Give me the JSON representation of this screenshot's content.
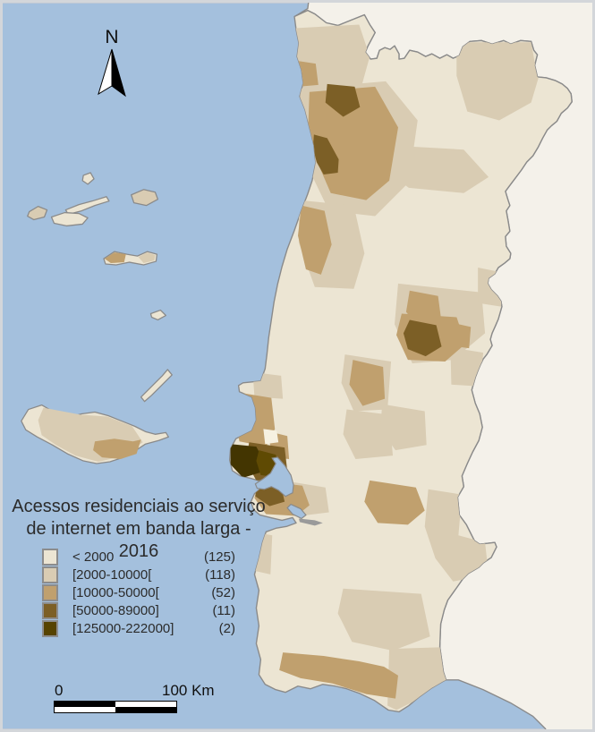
{
  "title": {
    "line1": "Acessos residenciais ao serviço",
    "line2": "de internet em banda larga - 2016"
  },
  "north": {
    "label": "N"
  },
  "scalebar": {
    "start": "0",
    "end": "100 Km"
  },
  "legend": {
    "items": [
      {
        "label": "< 2000",
        "count": "(125)",
        "color": "#ece5d3"
      },
      {
        "label": "[2000-10000[",
        "count": "(118)",
        "color": "#d9ccb3"
      },
      {
        "label": "[10000-50000[",
        "count": "(52)",
        "color": "#c0a06e"
      },
      {
        "label": "[50000-89000]",
        "count": "(11)",
        "color": "#7c5f26"
      },
      {
        "label": "[125000-222000]",
        "count": "(2)",
        "color": "#564300"
      }
    ]
  },
  "colors": {
    "ocean": "#a4c0dd",
    "neighbor_land": "#f4f1ea",
    "boundary": "#8a8a8a",
    "frame": "#d3d6da",
    "bright_spot": "#f6f1e1",
    "sintra_dark": "#433501",
    "lisboa_dark": "#5f4a03",
    "sandbank": "#9a9a9a",
    "arrow_black": "#000000",
    "arrow_white": "#ffffff",
    "text": "#2b2b2b"
  }
}
